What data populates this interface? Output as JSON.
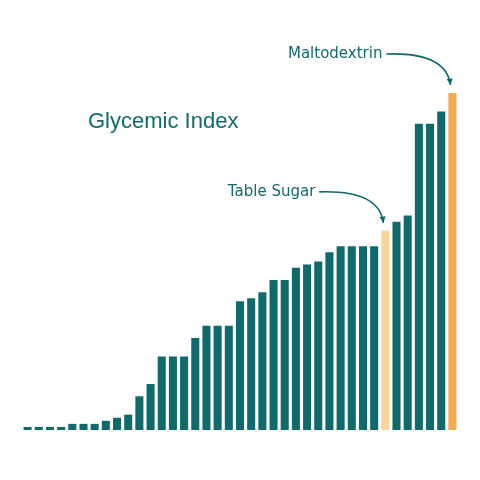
{
  "chart_data": {
    "type": "bar",
    "title": "Glycemic Index",
    "categories": [
      null,
      null,
      null,
      null,
      null,
      null,
      null,
      null,
      null,
      null,
      null,
      null,
      null,
      null,
      null,
      null,
      null,
      null,
      null,
      null,
      null,
      null,
      null,
      null,
      null,
      null,
      null,
      null,
      null,
      null,
      null,
      null,
      null,
      null,
      null,
      null,
      null,
      null,
      null
    ],
    "values": [
      1,
      1,
      1,
      1,
      2,
      2,
      2,
      3,
      4,
      5,
      11,
      15,
      24,
      24,
      24,
      30,
      34,
      34,
      34,
      42,
      43,
      45,
      49,
      49,
      53,
      54,
      55,
      58,
      60,
      60,
      60,
      60,
      65,
      68,
      70,
      100,
      100,
      104,
      110
    ],
    "colors": [
      "#0f6b6b",
      "#0f6b6b",
      "#0f6b6b",
      "#0f6b6b",
      "#0f6b6b",
      "#0f6b6b",
      "#0f6b6b",
      "#0f6b6b",
      "#0f6b6b",
      "#0f6b6b",
      "#0f6b6b",
      "#0f6b6b",
      "#0f6b6b",
      "#0f6b6b",
      "#0f6b6b",
      "#0f6b6b",
      "#0f6b6b",
      "#0f6b6b",
      "#0f6b6b",
      "#0f6b6b",
      "#0f6b6b",
      "#0f6b6b",
      "#0f6b6b",
      "#0f6b6b",
      "#0f6b6b",
      "#0f6b6b",
      "#0f6b6b",
      "#0f6b6b",
      "#0f6b6b",
      "#0f6b6b",
      "#0f6b6b",
      "#0f6b6b",
      "#f8d49b",
      "#0f6b6b",
      "#0f6b6b",
      "#0f6b6b",
      "#0f6b6b",
      "#0f6b6b",
      "#f7aa4f"
    ],
    "annotations": [
      {
        "text": "Table Sugar",
        "index": 32
      },
      {
        "text": "Maltodextrin",
        "index": 38
      }
    ],
    "ylim": [
      0,
      110
    ],
    "grid": false,
    "tick_labels": false
  }
}
